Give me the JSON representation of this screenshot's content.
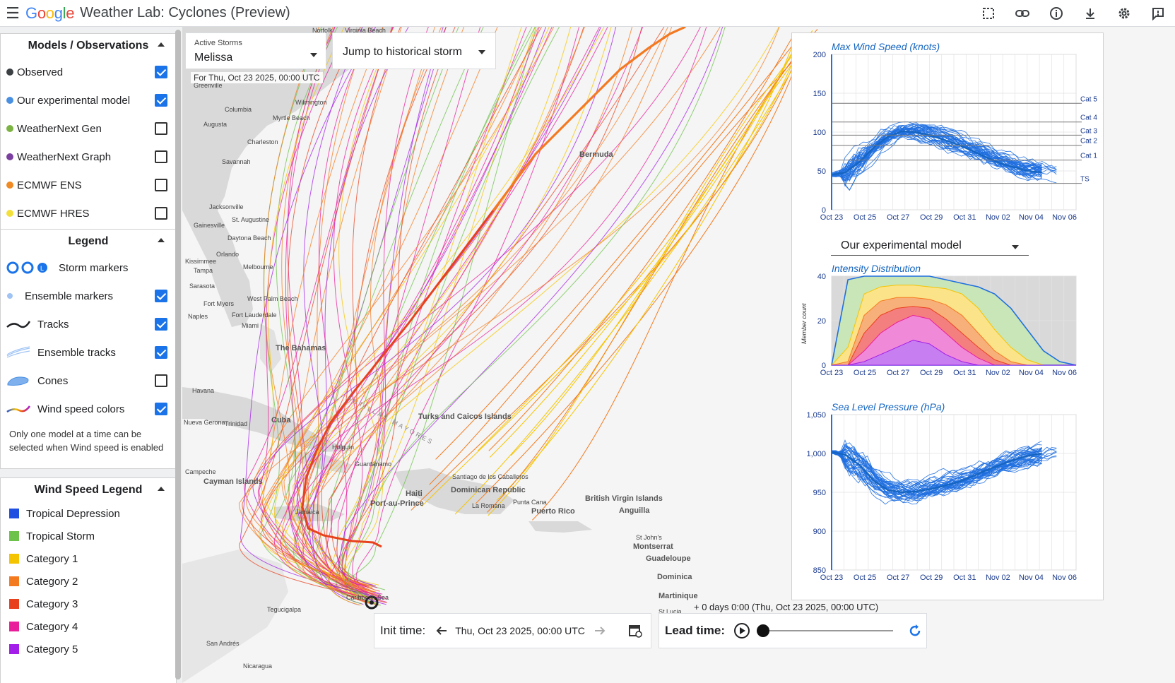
{
  "app": {
    "logo": [
      "G",
      "o",
      "o",
      "g",
      "l",
      "e"
    ],
    "logo_colors": [
      "#4285f4",
      "#ea4335",
      "#fbbc05",
      "#4285f4",
      "#34a853",
      "#ea4335"
    ],
    "title": "Weather Lab: Cyclones (Preview)"
  },
  "models_panel": {
    "title": "Models / Observations",
    "items": [
      {
        "label": "Observed",
        "color": "#3c4043",
        "checked": true
      },
      {
        "label": "Our experimental model",
        "color": "#4a90e2",
        "checked": true
      },
      {
        "label": "WeatherNext Gen",
        "color": "#7cb342",
        "checked": false
      },
      {
        "label": "WeatherNext Graph",
        "color": "#7b3fa0",
        "checked": false
      },
      {
        "label": "ECMWF ENS",
        "color": "#f08a24",
        "checked": false
      },
      {
        "label": "ECMWF HRES",
        "color": "#f4e03a",
        "checked": false
      }
    ]
  },
  "legend_panel": {
    "title": "Legend",
    "items": [
      {
        "label": "Storm markers",
        "checkbox": false
      },
      {
        "label": "Ensemble markers",
        "checkbox": true,
        "checked": true
      },
      {
        "label": "Tracks",
        "checkbox": true,
        "checked": true
      },
      {
        "label": "Ensemble tracks",
        "checkbox": true,
        "checked": true
      },
      {
        "label": "Cones",
        "checkbox": true,
        "checked": false
      },
      {
        "label": "Wind speed colors",
        "checkbox": true,
        "checked": true
      }
    ],
    "note": "Only one model at a time can be selected when Wind speed is enabled"
  },
  "wind_legend": {
    "title": "Wind Speed Legend",
    "items": [
      {
        "label": "Tropical Depression",
        "color": "#1f4fe0"
      },
      {
        "label": "Tropical Storm",
        "color": "#6cc24a"
      },
      {
        "label": "Category 1",
        "color": "#f5c400"
      },
      {
        "label": "Category 2",
        "color": "#f47a1f"
      },
      {
        "label": "Category 3",
        "color": "#e8411d"
      },
      {
        "label": "Category 4",
        "color": "#e81e9b"
      },
      {
        "label": "Category 5",
        "color": "#a31ee8"
      }
    ]
  },
  "storm_selector": {
    "label": "Active Storms",
    "value": "Melissa",
    "jump_label": "Jump to historical storm",
    "for_date": "For Thu, Oct 23 2025, 00:00 UTC"
  },
  "map_labels": {
    "places": [
      "Norfolk",
      "Virginia Beach",
      "Greenville",
      "Wilmington",
      "Columbia",
      "Myrtle Beach",
      "Augusta",
      "Charleston",
      "Savannah",
      "Jacksonville",
      "St. Augustine",
      "Gainesville",
      "Daytona Beach",
      "Orlando",
      "Kissimmee",
      "Melbourne",
      "Tampa",
      "Sarasota",
      "Fort Myers",
      "West Palm Beach",
      "Naples",
      "Fort Lauderdale",
      "Miami",
      "Bermuda",
      "The Bahamas",
      "Havana",
      "Nueva Gerona",
      "Trinidad",
      "Cuba",
      "Turks and Caicos Islands",
      "ANTILLAS MAYORES",
      "Holguín",
      "Guantánamo",
      "Cayman Islands",
      "Haiti",
      "Port-au-Prince",
      "Santiago de los Caballeros",
      "Dominican Republic",
      "La Romana",
      "Punta Cana",
      "Puerto Rico",
      "British Virgin Islands",
      "Anguilla",
      "St John's",
      "Montserrat",
      "Guadeloupe",
      "Dominica",
      "Martinique",
      "St Lucia",
      "Jamaica",
      "Campeche",
      "Caribbean Sea",
      "San Andrés",
      "Nicaragua",
      "Tegucigalpa"
    ]
  },
  "chart_data": [
    {
      "type": "line",
      "title": "Max Wind Speed (knots)",
      "x_ticks": [
        "Oct 23",
        "Oct 25",
        "Oct 27",
        "Oct 29",
        "Oct 31",
        "Nov 02",
        "Nov 04",
        "Nov 06"
      ],
      "y_ticks": [
        "0",
        "50",
        "100",
        "150",
        "200"
      ],
      "ylim": [
        0,
        200
      ],
      "thresholds": [
        {
          "label": "TS",
          "value": 34
        },
        {
          "label": "Cat 1",
          "value": 64
        },
        {
          "label": "Cat 2",
          "value": 83
        },
        {
          "label": "Cat 3",
          "value": 96
        },
        {
          "label": "Cat 4",
          "value": 113
        },
        {
          "label": "Cat 5",
          "value": 137
        }
      ],
      "series": [
        {
          "name": "ensemble mean",
          "values": [
            45,
            48,
            62,
            80,
            94,
            101,
            100,
            96,
            90,
            84,
            76,
            68,
            60,
            55,
            50,
            48
          ]
        }
      ]
    },
    {
      "type": "area",
      "title": "Intensity Distribution",
      "selector": "Our experimental model",
      "ylabel": "Member count",
      "x_ticks": [
        "Oct 23",
        "Oct 25",
        "Oct 27",
        "Oct 29",
        "Oct 31",
        "Nov 02",
        "Nov 04",
        "Nov 06"
      ],
      "y_ticks": [
        "0",
        "20",
        "40"
      ],
      "ylim": [
        0,
        50
      ],
      "series": [
        {
          "name": "Tropical Storm+",
          "values": [
            0,
            48,
            50,
            50,
            50,
            50,
            50,
            48,
            46,
            44,
            40,
            32,
            20,
            8,
            2,
            0
          ]
        },
        {
          "name": "Category 1+",
          "values": [
            0,
            10,
            40,
            44,
            45,
            45,
            44,
            43,
            40,
            32,
            20,
            10,
            3,
            0,
            0,
            0
          ]
        },
        {
          "name": "Category 2+",
          "values": [
            0,
            2,
            28,
            36,
            38,
            38,
            37,
            34,
            28,
            18,
            8,
            2,
            0,
            0,
            0,
            0
          ]
        },
        {
          "name": "Category 3+",
          "values": [
            0,
            0,
            18,
            28,
            32,
            33,
            32,
            26,
            18,
            10,
            3,
            0,
            0,
            0,
            0,
            0
          ]
        },
        {
          "name": "Category 4+",
          "values": [
            0,
            0,
            8,
            18,
            24,
            28,
            26,
            18,
            10,
            4,
            0,
            0,
            0,
            0,
            0,
            0
          ]
        },
        {
          "name": "Category 5",
          "values": [
            0,
            0,
            2,
            6,
            10,
            14,
            12,
            6,
            2,
            0,
            0,
            0,
            0,
            0,
            0,
            0
          ]
        }
      ]
    },
    {
      "type": "line",
      "title": "Sea Level Pressure (hPa)",
      "x_ticks": [
        "Oct 23",
        "Oct 25",
        "Oct 27",
        "Oct 29",
        "Oct 31",
        "Nov 02",
        "Nov 04",
        "Nov 06"
      ],
      "y_ticks": [
        "850",
        "900",
        "950",
        "1,000",
        "1,050"
      ],
      "ylim": [
        850,
        1050
      ],
      "series": [
        {
          "name": "ensemble mean",
          "values": [
            1002,
            998,
            985,
            965,
            953,
            950,
            951,
            954,
            958,
            963,
            970,
            978,
            985,
            992,
            997,
            1000
          ]
        }
      ]
    }
  ],
  "bottom": {
    "init_label": "Init time:",
    "init_date": "Thu, Oct 23 2025, 00:00 UTC",
    "lead_label": "Lead time:",
    "lead_text": "+ 0 days 0:00  (Thu, Oct 23 2025, 00:00 UTC)",
    "lead_progress": 0
  }
}
